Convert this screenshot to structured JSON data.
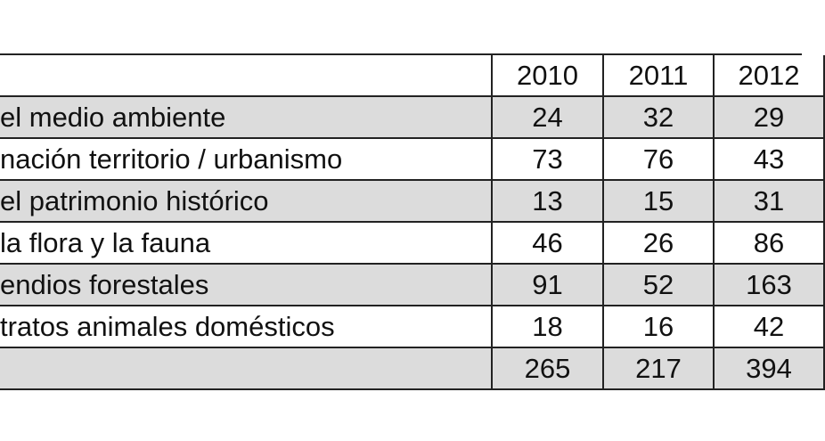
{
  "table": {
    "header": [
      "",
      "2010",
      "2011",
      "2012"
    ],
    "rows": [
      [
        "el medio ambiente",
        "24",
        "32",
        "29"
      ],
      [
        "nación territorio / urbanismo",
        "73",
        "76",
        "43"
      ],
      [
        "el patrimonio histórico",
        "13",
        "15",
        "31"
      ],
      [
        "la flora y la fauna",
        "46",
        "26",
        "86"
      ],
      [
        "endios forestales",
        "91",
        "52",
        "163"
      ],
      [
        "tratos animales domésticos",
        "18",
        "16",
        "42"
      ],
      [
        "",
        "265",
        "217",
        "394"
      ]
    ]
  }
}
